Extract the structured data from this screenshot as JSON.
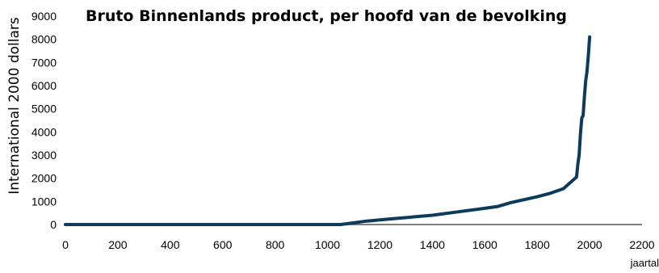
{
  "chart_data": {
    "type": "line",
    "title": "Bruto Binnenlands product, per hoofd van de bevolking",
    "xlabel": "jaartal",
    "ylabel": "International 2000 dollars",
    "xlim": [
      0,
      2200
    ],
    "ylim": [
      0,
      9000
    ],
    "xticks": [
      0,
      200,
      400,
      600,
      800,
      1000,
      1200,
      1400,
      1600,
      1800,
      2000,
      2200
    ],
    "yticks": [
      0,
      1000,
      2000,
      3000,
      4000,
      5000,
      6000,
      7000,
      8000,
      9000
    ],
    "grid": false,
    "legend": "none",
    "series": [
      {
        "color": "#0e3a5c",
        "x": [
          0,
          1000,
          1050,
          1150,
          1250,
          1400,
          1500,
          1600,
          1650,
          1700,
          1800,
          1850,
          1900,
          1950,
          1955,
          1960,
          1965,
          1970,
          1975,
          1980,
          1985,
          1990,
          1995,
          2000
        ],
        "y": [
          0,
          0,
          0,
          150,
          250,
          400,
          550,
          700,
          780,
          950,
          1200,
          1350,
          1550,
          2050,
          2600,
          3000,
          3900,
          4600,
          4700,
          5500,
          6200,
          6600,
          7300,
          8100
        ]
      }
    ]
  }
}
